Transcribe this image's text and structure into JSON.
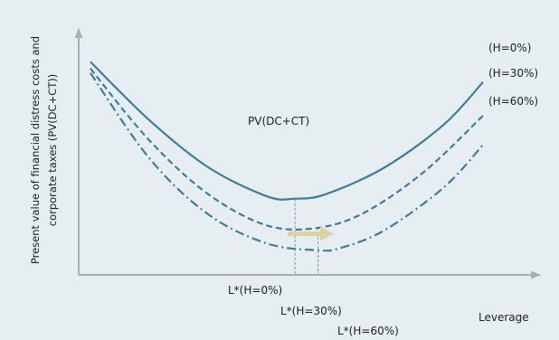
{
  "chart_data": {
    "type": "line",
    "xlabel": "Leverage",
    "ylabel_lines": [
      "Present value of financial distress costs and",
      "corporate taxes (PV(DC+CT))"
    ],
    "curve_label": "PV(DC+CT)",
    "grid": false,
    "legend_placement": "labels at right end of each curve",
    "colors": {
      "curve": "#3d7f98",
      "axis": "#a3b1b8",
      "guide": "#8b9aa1",
      "arrow": "#dcd3a1"
    },
    "series": [
      {
        "name": "(H=0%)",
        "style": "solid",
        "optimum_label": "L*(H=0%)",
        "points": [
          [
            0.0,
            0.95
          ],
          [
            0.15,
            0.69
          ],
          [
            0.3,
            0.48
          ],
          [
            0.45,
            0.35
          ],
          [
            0.5213,
            0.34
          ],
          [
            0.6,
            0.36
          ],
          [
            0.75,
            0.48
          ],
          [
            0.9,
            0.67
          ],
          [
            1.0,
            0.86
          ]
        ]
      },
      {
        "name": "(H=30%)",
        "style": "dashed",
        "optimum_label": "L*(H=30%)",
        "points": [
          [
            0.0,
            0.92
          ],
          [
            0.15,
            0.6
          ],
          [
            0.3,
            0.36
          ],
          [
            0.45,
            0.22
          ],
          [
            0.5797,
            0.21
          ],
          [
            0.7,
            0.28
          ],
          [
            0.85,
            0.46
          ],
          [
            1.0,
            0.71
          ]
        ]
      },
      {
        "name": "(H=60%)",
        "style": "dash-dot",
        "optimum_label": "L*(H=60%)",
        "points": [
          [
            0.0,
            0.9
          ],
          [
            0.15,
            0.52
          ],
          [
            0.3,
            0.27
          ],
          [
            0.45,
            0.14
          ],
          [
            0.5797,
            0.11
          ],
          [
            0.6373,
            0.12
          ],
          [
            0.75,
            0.2
          ],
          [
            0.9,
            0.39
          ],
          [
            1.0,
            0.58
          ]
        ]
      }
    ]
  }
}
